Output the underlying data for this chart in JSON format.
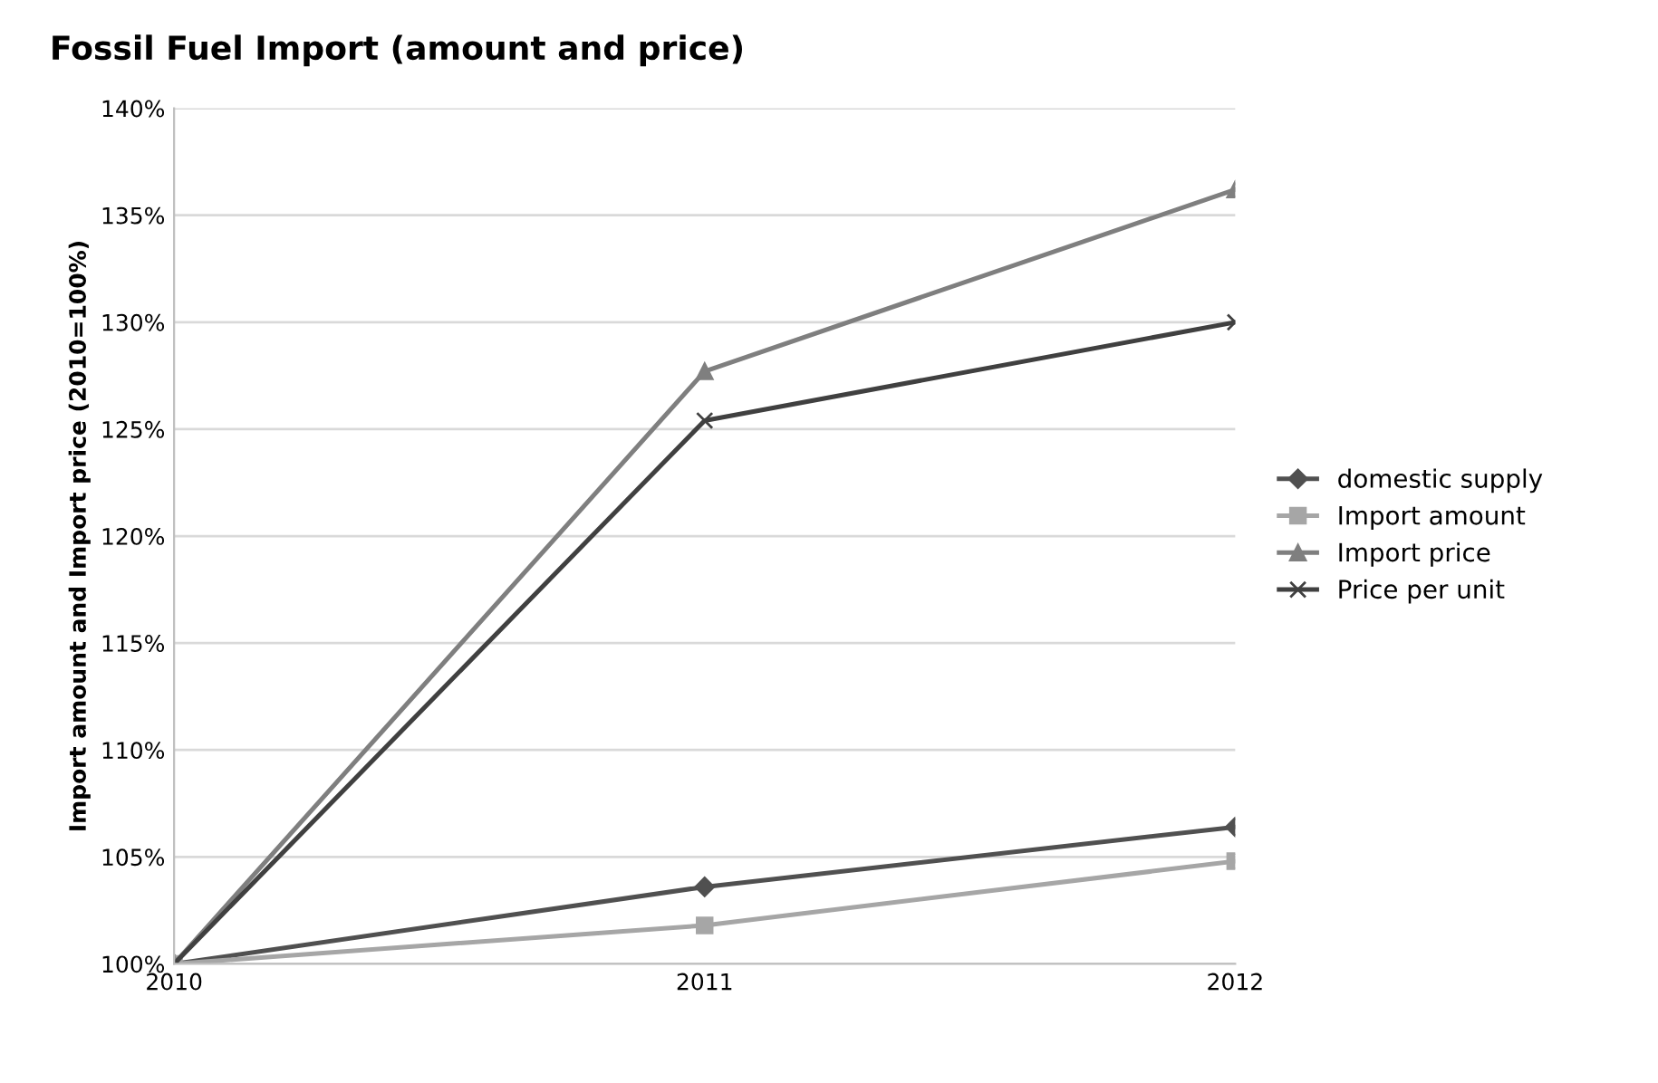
{
  "chart_data": {
    "type": "line",
    "title": "Fossil Fuel Import (amount and price)",
    "ylabel": "Import amount and Import price (2010=100%)",
    "categories": [
      "2010",
      "2011",
      "2012"
    ],
    "series": [
      {
        "name": "domestic supply",
        "color": "#505050",
        "marker": "diamond",
        "values": [
          100,
          103.6,
          106.4
        ]
      },
      {
        "name": "Import amount",
        "color": "#a6a6a6",
        "marker": "square",
        "values": [
          100,
          101.8,
          104.8
        ]
      },
      {
        "name": "Import price",
        "color": "#7f7f7f",
        "marker": "triangle",
        "values": [
          100,
          127.7,
          136.2
        ]
      },
      {
        "name": "Price per unit",
        "color": "#404040",
        "marker": "cross",
        "values": [
          100,
          125.4,
          130.0
        ]
      }
    ],
    "ylim": [
      100,
      140
    ],
    "yticks": [
      {
        "value": 100,
        "label": "100%"
      },
      {
        "value": 105,
        "label": "105%"
      },
      {
        "value": 110,
        "label": "110%"
      },
      {
        "value": 115,
        "label": "115%"
      },
      {
        "value": 120,
        "label": "120%"
      },
      {
        "value": 125,
        "label": "125%"
      },
      {
        "value": 130,
        "label": "130%"
      },
      {
        "value": 135,
        "label": "135%"
      },
      {
        "value": 140,
        "label": "140%"
      }
    ],
    "grid": "y",
    "legend": "right",
    "line_style": "solid"
  }
}
